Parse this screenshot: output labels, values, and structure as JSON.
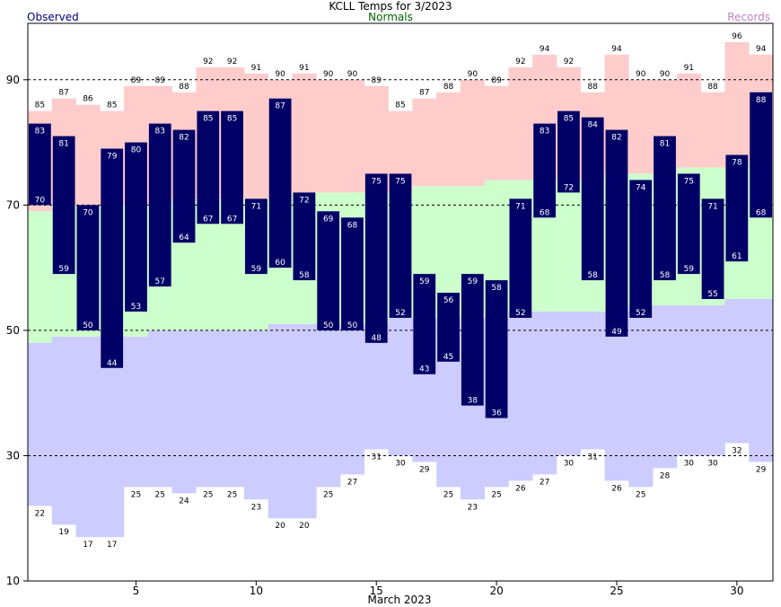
{
  "chart_data": {
    "type": "bar",
    "title": "KCLL Temps for 3/2023",
    "xlabel": "March 2023",
    "ylabel": "",
    "legend": {
      "observed": "Observed",
      "normals": "Normals",
      "records": "Records"
    },
    "ylim": [
      10,
      99
    ],
    "xlim": [
      0.5,
      31.5
    ],
    "yticks": [
      10,
      30,
      50,
      70,
      90
    ],
    "xticks": [
      5,
      10,
      15,
      20,
      25,
      30
    ],
    "gridlines_dashed": [
      30,
      50,
      70,
      90
    ],
    "days": [
      1,
      2,
      3,
      4,
      5,
      6,
      7,
      8,
      9,
      10,
      11,
      12,
      13,
      14,
      15,
      16,
      17,
      18,
      19,
      20,
      21,
      22,
      23,
      24,
      25,
      26,
      27,
      28,
      29,
      30,
      31
    ],
    "observed_high": [
      83,
      81,
      70,
      79,
      80,
      83,
      82,
      85,
      85,
      71,
      87,
      72,
      69,
      68,
      75,
      75,
      59,
      56,
      59,
      58,
      71,
      83,
      85,
      84,
      82,
      74,
      81,
      75,
      71,
      78,
      88
    ],
    "observed_low": [
      70,
      59,
      50,
      44,
      53,
      57,
      64,
      67,
      67,
      59,
      60,
      58,
      50,
      50,
      48,
      52,
      43,
      45,
      38,
      36,
      52,
      68,
      72,
      58,
      49,
      52,
      58,
      59,
      55,
      61,
      68
    ],
    "record_high": [
      85,
      87,
      86,
      85,
      89,
      89,
      88,
      92,
      92,
      91,
      90,
      91,
      90,
      90,
      89,
      85,
      87,
      88,
      90,
      89,
      92,
      94,
      92,
      88,
      94,
      90,
      90,
      91,
      88,
      96,
      94
    ],
    "record_low": [
      22,
      19,
      17,
      17,
      25,
      25,
      24,
      25,
      25,
      23,
      20,
      20,
      25,
      27,
      31,
      30,
      29,
      25,
      23,
      25,
      26,
      27,
      30,
      31,
      26,
      25,
      28,
      30,
      30,
      32,
      29
    ],
    "normal_high": [
      69,
      70,
      70,
      70,
      70,
      70,
      71,
      71,
      71,
      71,
      71,
      72,
      72,
      72,
      72,
      72,
      73,
      73,
      73,
      74,
      74,
      74,
      74,
      74,
      75,
      75,
      75,
      76,
      76,
      76,
      77
    ],
    "normal_low": [
      48,
      49,
      49,
      49,
      49,
      50,
      50,
      50,
      50,
      50,
      51,
      51,
      51,
      51,
      51,
      52,
      52,
      52,
      52,
      52,
      53,
      53,
      53,
      53,
      53,
      54,
      54,
      54,
      54,
      55,
      55
    ],
    "colors": {
      "observed_bar": "#000066",
      "record_band": "#ffcccc",
      "normal_band": "#ccffcc",
      "low_band": "#ccccff",
      "observed_text": "#000080",
      "normals_text": "#006400",
      "records_text": "#c080c0",
      "bar_label": "#ffffff",
      "record_label": "#000000"
    }
  }
}
